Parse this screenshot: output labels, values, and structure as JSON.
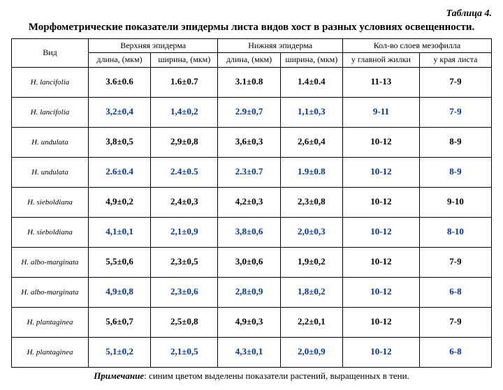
{
  "table_label": "Таблица 4.",
  "title": "Морфометрические показатели эпидермы листа видов хост в разных условиях освещенности.",
  "header": {
    "species": "Вид",
    "upper_epidermis": "Верхняя эпидерма",
    "lower_epidermis": "Нижняя эпидерма",
    "mesophyll": "Кол-во слоев мезофилла",
    "length": "длина, (мкм)",
    "width": "ширина, (мкм)",
    "at_vein": "у главной жилки",
    "at_edge": "у края листа"
  },
  "rows": [
    {
      "species": "H. lancifolia",
      "shade": false,
      "ue_l": "3.6±0.6",
      "ue_w": "1.6±0.7",
      "le_l": "3.1±0.8",
      "le_w": "1.4±0.4",
      "mf_v": "11-13",
      "mf_e": "7-9"
    },
    {
      "species": "H. lancifolia",
      "shade": true,
      "ue_l": "3,2±0,4",
      "ue_w": "1,4±0,2",
      "le_l": "2.9±0,7",
      "le_w": "1,1±0,3",
      "mf_v": "9-11",
      "mf_e": "7-9"
    },
    {
      "species": "H. undulata",
      "shade": false,
      "ue_l": "3,8±0,5",
      "ue_w": "2,9±0,8",
      "le_l": "3,6±0,3",
      "le_w": "2,6±0,4",
      "mf_v": "10-12",
      "mf_e": "8-9"
    },
    {
      "species": "H. undulata",
      "shade": true,
      "ue_l": "2.6±0.4",
      "ue_w": "2.4±0.5",
      "le_l": "2.3±0.7",
      "le_w": "1.9±0.8",
      "mf_v": "10-12",
      "mf_e": "8-9"
    },
    {
      "species": "H. sieboldiana",
      "shade": false,
      "ue_l": "4,9±0,2",
      "ue_w": "2,4±0,3",
      "le_l": "4,2±0,3",
      "le_w": "2,3±0,8",
      "mf_v": "10-12",
      "mf_e": "9-10"
    },
    {
      "species": "H. sieboldiana",
      "shade": true,
      "ue_l": "4,1±0,1",
      "ue_w": "2,1±0,9",
      "le_l": "3,8±0,6",
      "le_w": "2,0±0,3",
      "mf_v": "10-12",
      "mf_e": "8-10"
    },
    {
      "species": "H. albo-marginata",
      "shade": false,
      "ue_l": "5,5±0,6",
      "ue_w": "2,3±0,5",
      "le_l": "3,0±0,6",
      "le_w": "1,9±0,2",
      "mf_v": "10-12",
      "mf_e": "7-9"
    },
    {
      "species": "H. albo-marginata",
      "shade": true,
      "ue_l": "4,9±0,8",
      "ue_w": "2,3±0,6",
      "le_l": "2,8±0,9",
      "le_w": "1,8±0,2",
      "mf_v": "10-12",
      "mf_e": "6-8"
    },
    {
      "species": "H. plantaginea",
      "shade": false,
      "ue_l": "5,6±0,7",
      "ue_w": "2,5±0,8",
      "le_l": "4,9±0,3",
      "le_w": "2,2±0,1",
      "mf_v": "10-12",
      "mf_e": "7-9"
    },
    {
      "species": "H. plantaginea",
      "shade": true,
      "ue_l": "5,1±0,2",
      "ue_w": "2,1±0,5",
      "le_l": "4,3±0,1",
      "le_w": "2,0±0,9",
      "mf_v": "10-12",
      "mf_e": "6-8"
    }
  ],
  "note_label": "Примечание",
  "note_text": ": синим цветом выделены показатели растений, выращенных в тени.",
  "colors": {
    "shade_text": "#0033aa"
  }
}
